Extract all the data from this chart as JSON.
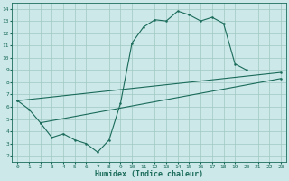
{
  "title": "",
  "xlabel": "Humidex (Indice chaleur)",
  "ylabel": "",
  "bg_color": "#cce8e8",
  "line_color": "#1a6b5a",
  "grid_color": "#a0c8c0",
  "xlim": [
    -0.5,
    23.5
  ],
  "ylim": [
    1.5,
    14.5
  ],
  "xticks": [
    0,
    1,
    2,
    3,
    4,
    5,
    6,
    7,
    8,
    9,
    10,
    11,
    12,
    13,
    14,
    15,
    16,
    17,
    18,
    19,
    20,
    21,
    22,
    23
  ],
  "yticks": [
    2,
    3,
    4,
    5,
    6,
    7,
    8,
    9,
    10,
    11,
    12,
    13,
    14
  ],
  "line1_x": [
    0,
    1,
    2,
    3,
    4,
    5,
    6,
    7,
    8,
    9,
    10,
    11,
    12,
    13,
    14,
    15,
    16,
    17,
    18,
    19,
    20
  ],
  "line1_y": [
    6.5,
    5.8,
    4.7,
    3.5,
    3.8,
    3.3,
    3.0,
    2.3,
    3.3,
    6.3,
    11.2,
    12.5,
    13.1,
    13.0,
    13.8,
    13.5,
    13.0,
    13.3,
    12.8,
    9.5,
    9.0
  ],
  "line2_x": [
    0,
    23
  ],
  "line2_y": [
    6.5,
    8.8
  ],
  "line3_x": [
    2,
    23
  ],
  "line3_y": [
    4.7,
    8.3
  ]
}
